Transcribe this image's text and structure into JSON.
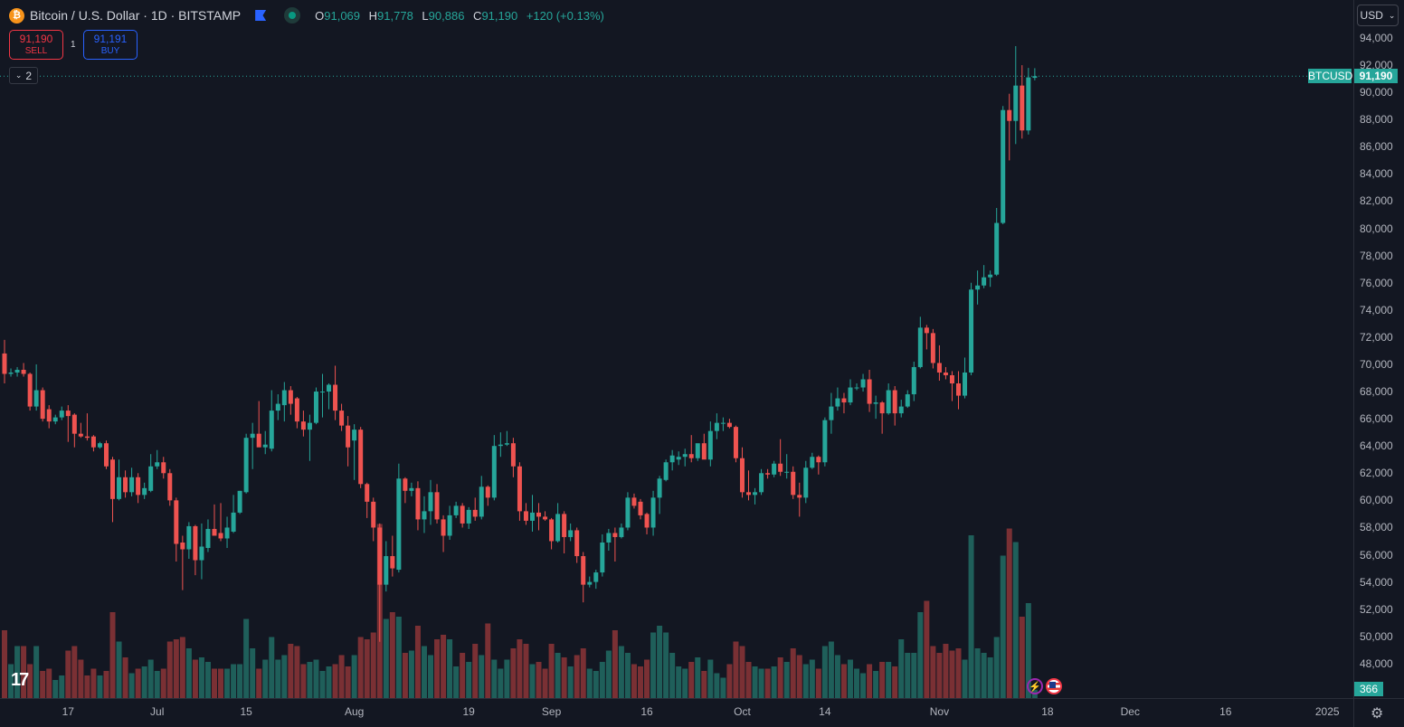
{
  "header": {
    "logo_glyph": "₿",
    "title": "Bitcoin / U.S. Dollar · 1D · BITSTAMP",
    "ohlc": {
      "o_label": "O",
      "o": "91,069",
      "h_label": "H",
      "h": "91,778",
      "l_label": "L",
      "l": "90,886",
      "c_label": "C",
      "c": "91,190",
      "change": "+120 (+0.13%)"
    }
  },
  "trade": {
    "sell_price": "91,190",
    "sell_label": "SELL",
    "qty": "1",
    "buy_price": "91,191",
    "buy_label": "BUY"
  },
  "indicators_toggle": {
    "icon": "chevron-down",
    "count": "2"
  },
  "currency_button": {
    "label": "USD",
    "icon": "chevron-down"
  },
  "price_tag": {
    "symbol": "BTCUSD",
    "price": "91,190"
  },
  "volume_tag": "366",
  "colors": {
    "up": "#26a69a",
    "down": "#ef5350",
    "up_vol": "#1f5f5a",
    "down_vol": "#7a3034",
    "bg": "#131722",
    "axis_text": "#b2b5be"
  },
  "chart_data": {
    "type": "candlestick",
    "title": "Bitcoin / U.S. Dollar · 1D · BITSTAMP",
    "units": "USD thousands (o,h,l,c)",
    "ylim": [
      46,
      94
    ],
    "y_ticks": [
      "94,000",
      "92,000",
      "90,000",
      "88,000",
      "86,000",
      "84,000",
      "82,000",
      "80,000",
      "78,000",
      "76,000",
      "74,000",
      "72,000",
      "70,000",
      "68,000",
      "66,000",
      "64,000",
      "62,000",
      "60,000",
      "58,000",
      "56,000",
      "54,000",
      "52,000",
      "50,000",
      "48,000"
    ],
    "y_tick_values": [
      94,
      92,
      90,
      88,
      86,
      84,
      82,
      80,
      78,
      76,
      74,
      72,
      70,
      68,
      66,
      64,
      62,
      60,
      58,
      56,
      54,
      52,
      50,
      48
    ],
    "x_ticks": [
      {
        "label": "17",
        "day_index": 10
      },
      {
        "label": "Jul",
        "day_index": 24
      },
      {
        "label": "15",
        "day_index": 38
      },
      {
        "label": "Aug",
        "day_index": 55
      },
      {
        "label": "19",
        "day_index": 73
      },
      {
        "label": "Sep",
        "day_index": 86
      },
      {
        "label": "16",
        "day_index": 101
      },
      {
        "label": "Oct",
        "day_index": 116
      },
      {
        "label": "14",
        "day_index": 129
      },
      {
        "label": "Nov",
        "day_index": 147
      },
      {
        "label": "18",
        "day_index": 164
      },
      {
        "label": "Dec",
        "day_index": 177
      },
      {
        "label": "16",
        "day_index": 192
      },
      {
        "label": "2025",
        "day_index": 208
      }
    ],
    "last_price": 91.19,
    "candles": [
      [
        70.8,
        71.8,
        68.6,
        69.3
      ],
      [
        69.3,
        69.7,
        69.1,
        69.4
      ],
      [
        69.4,
        69.8,
        69.1,
        69.6
      ],
      [
        69.6,
        70.1,
        69.1,
        69.3
      ],
      [
        69.3,
        69.4,
        66.6,
        66.9
      ],
      [
        66.9,
        70.0,
        66.6,
        68.1
      ],
      [
        68.1,
        68.3,
        65.8,
        66.0
      ],
      [
        66.7,
        67.0,
        65.3,
        65.8
      ],
      [
        65.8,
        66.3,
        65.6,
        66.1
      ],
      [
        66.1,
        66.9,
        65.9,
        66.6
      ],
      [
        66.6,
        67.0,
        64.3,
        66.2
      ],
      [
        66.3,
        66.4,
        63.9,
        64.9
      ],
      [
        64.9,
        65.7,
        64.6,
        64.7
      ],
      [
        64.7,
        66.4,
        64.4,
        64.6
      ],
      [
        64.7,
        64.8,
        63.6,
        63.9
      ],
      [
        63.9,
        64.3,
        63.8,
        64.2
      ],
      [
        64.2,
        64.4,
        62.3,
        62.5
      ],
      [
        63.0,
        63.2,
        58.4,
        60.1
      ],
      [
        60.1,
        63.0,
        60.0,
        61.7
      ],
      [
        61.7,
        62.2,
        60.2,
        60.6
      ],
      [
        60.6,
        62.4,
        60.3,
        61.7
      ],
      [
        61.7,
        62.0,
        59.8,
        60.4
      ],
      [
        60.4,
        61.3,
        60.1,
        60.9
      ],
      [
        60.7,
        63.4,
        60.6,
        62.5
      ],
      [
        62.5,
        63.7,
        62.3,
        62.8
      ],
      [
        62.8,
        63.2,
        61.6,
        62.0
      ],
      [
        62.0,
        62.3,
        59.6,
        60.0
      ],
      [
        60.0,
        60.2,
        55.5,
        56.8
      ],
      [
        56.9,
        57.4,
        53.4,
        56.4
      ],
      [
        56.4,
        58.4,
        55.7,
        58.1
      ],
      [
        58.1,
        58.2,
        54.5,
        55.6
      ],
      [
        55.6,
        58.3,
        54.2,
        56.6
      ],
      [
        56.5,
        58.6,
        56.2,
        57.9
      ],
      [
        57.9,
        59.7,
        57.6,
        57.4
      ],
      [
        57.6,
        59.8,
        57.0,
        57.2
      ],
      [
        57.2,
        58.8,
        56.5,
        58.0
      ],
      [
        57.7,
        60.4,
        57.6,
        59.1
      ],
      [
        59.1,
        60.7,
        59.0,
        60.7
      ],
      [
        60.6,
        64.9,
        60.5,
        64.6
      ],
      [
        64.6,
        65.7,
        62.3,
        64.9
      ],
      [
        64.9,
        67.3,
        64.0,
        63.9
      ],
      [
        63.9,
        65.1,
        63.4,
        64.1
      ],
      [
        63.8,
        68.1,
        63.6,
        66.6
      ],
      [
        66.6,
        67.8,
        65.9,
        67.1
      ],
      [
        67.0,
        68.7,
        65.8,
        68.1
      ],
      [
        68.1,
        68.4,
        66.3,
        67.1
      ],
      [
        67.5,
        67.6,
        65.3,
        65.8
      ],
      [
        65.8,
        66.6,
        64.7,
        65.2
      ],
      [
        65.2,
        66.3,
        62.9,
        65.7
      ],
      [
        65.7,
        68.3,
        65.6,
        68.0
      ],
      [
        68.0,
        69.3,
        66.1,
        68.0
      ],
      [
        68.0,
        68.6,
        66.7,
        68.5
      ],
      [
        68.5,
        69.9,
        65.9,
        66.6
      ],
      [
        66.6,
        67.1,
        65.1,
        65.5
      ],
      [
        65.5,
        66.2,
        62.5,
        63.9
      ],
      [
        64.4,
        65.6,
        61.5,
        65.2
      ],
      [
        65.2,
        65.4,
        60.9,
        61.2
      ],
      [
        61.2,
        61.3,
        58.7,
        59.9
      ],
      [
        59.9,
        60.2,
        57.0,
        58.0
      ],
      [
        58.0,
        58.3,
        49.6,
        53.8
      ],
      [
        53.8,
        57.0,
        53.3,
        55.9
      ],
      [
        55.9,
        57.4,
        54.4,
        55.0
      ],
      [
        54.9,
        62.7,
        54.7,
        61.6
      ],
      [
        61.6,
        61.7,
        59.8,
        60.7
      ],
      [
        60.7,
        61.3,
        60.3,
        60.9
      ],
      [
        60.9,
        61.4,
        57.8,
        58.6
      ],
      [
        58.6,
        60.3,
        57.6,
        59.2
      ],
      [
        59.2,
        61.5,
        58.2,
        60.6
      ],
      [
        60.6,
        61.2,
        58.3,
        58.6
      ],
      [
        58.6,
        58.9,
        56.2,
        57.4
      ],
      [
        57.4,
        59.6,
        57.1,
        58.9
      ],
      [
        58.9,
        59.9,
        58.7,
        59.6
      ],
      [
        59.6,
        59.8,
        58.0,
        58.3
      ],
      [
        58.3,
        59.5,
        57.9,
        59.3
      ],
      [
        59.3,
        60.2,
        58.5,
        58.8
      ],
      [
        58.8,
        61.8,
        58.6,
        61.0
      ],
      [
        61.0,
        61.1,
        59.6,
        60.2
      ],
      [
        60.2,
        64.8,
        60.0,
        64.0
      ],
      [
        64.0,
        65.0,
        63.2,
        64.1
      ],
      [
        64.1,
        65.1,
        64.0,
        64.2
      ],
      [
        64.2,
        64.6,
        61.7,
        62.5
      ],
      [
        62.5,
        62.8,
        58.5,
        59.2
      ],
      [
        59.2,
        59.8,
        58.2,
        58.5
      ],
      [
        58.5,
        60.4,
        57.7,
        59.1
      ],
      [
        59.1,
        59.8,
        57.8,
        58.8
      ],
      [
        58.8,
        59.2,
        58.5,
        58.6
      ],
      [
        58.6,
        58.7,
        56.4,
        57.0
      ],
      [
        57.0,
        59.8,
        56.9,
        59.0
      ],
      [
        59.0,
        59.2,
        56.1,
        57.3
      ],
      [
        57.3,
        58.3,
        57.0,
        57.8
      ],
      [
        57.8,
        58.0,
        55.4,
        55.9
      ],
      [
        55.9,
        56.2,
        52.5,
        53.8
      ],
      [
        53.8,
        54.4,
        53.6,
        54.0
      ],
      [
        54.0,
        54.9,
        53.5,
        54.7
      ],
      [
        54.7,
        57.5,
        54.4,
        56.9
      ],
      [
        56.9,
        57.9,
        56.3,
        57.6
      ],
      [
        57.6,
        58.0,
        55.5,
        57.3
      ],
      [
        57.3,
        58.3,
        57.2,
        58.0
      ],
      [
        58.0,
        60.6,
        57.8,
        60.2
      ],
      [
        60.2,
        60.5,
        59.4,
        59.6
      ],
      [
        59.9,
        60.1,
        58.6,
        58.9
      ],
      [
        59.0,
        59.1,
        57.5,
        58.0
      ],
      [
        58.0,
        60.7,
        57.4,
        60.2
      ],
      [
        60.2,
        61.8,
        59.0,
        61.6
      ],
      [
        61.5,
        63.0,
        61.4,
        62.8
      ],
      [
        62.8,
        63.7,
        62.2,
        63.3
      ],
      [
        63.0,
        63.6,
        62.6,
        63.2
      ],
      [
        63.2,
        63.8,
        62.5,
        63.4
      ],
      [
        63.4,
        64.8,
        62.8,
        63.1
      ],
      [
        63.1,
        64.0,
        62.9,
        64.2
      ],
      [
        64.2,
        64.9,
        63.1,
        63.0
      ],
      [
        63.0,
        65.8,
        62.5,
        65.1
      ],
      [
        65.1,
        66.4,
        64.5,
        65.7
      ],
      [
        65.7,
        66.1,
        65.1,
        65.7
      ],
      [
        65.7,
        66.0,
        65.3,
        65.4
      ],
      [
        65.4,
        65.5,
        62.8,
        63.1
      ],
      [
        63.1,
        63.9,
        60.2,
        60.6
      ],
      [
        60.6,
        62.2,
        60.0,
        60.4
      ],
      [
        60.4,
        60.9,
        59.7,
        60.6
      ],
      [
        60.6,
        62.3,
        60.4,
        62.0
      ],
      [
        62.0,
        62.3,
        61.6,
        61.9
      ],
      [
        61.9,
        62.9,
        61.7,
        62.7
      ],
      [
        62.7,
        64.5,
        61.8,
        62.1
      ],
      [
        62.1,
        63.4,
        61.6,
        62.1
      ],
      [
        62.1,
        62.5,
        60.1,
        60.4
      ],
      [
        60.4,
        61.3,
        58.8,
        60.2
      ],
      [
        60.2,
        62.9,
        59.8,
        62.4
      ],
      [
        62.4,
        63.5,
        62.3,
        63.2
      ],
      [
        63.2,
        63.3,
        61.9,
        62.8
      ],
      [
        62.8,
        66.1,
        62.5,
        65.9
      ],
      [
        65.9,
        67.9,
        64.9,
        66.9
      ],
      [
        66.9,
        68.3,
        66.6,
        67.5
      ],
      [
        67.5,
        67.9,
        66.4,
        67.2
      ],
      [
        67.2,
        68.9,
        67.0,
        68.3
      ],
      [
        68.3,
        68.6,
        68.1,
        68.3
      ],
      [
        68.3,
        69.3,
        68.0,
        68.9
      ],
      [
        68.9,
        69.6,
        66.5,
        67.1
      ],
      [
        67.1,
        67.7,
        66.0,
        67.2
      ],
      [
        67.2,
        67.3,
        64.9,
        66.4
      ],
      [
        66.4,
        68.6,
        66.3,
        68.1
      ],
      [
        68.1,
        68.4,
        65.5,
        66.4
      ],
      [
        66.4,
        67.4,
        66.1,
        66.9
      ],
      [
        66.9,
        68.1,
        66.8,
        67.8
      ],
      [
        67.8,
        70.2,
        67.3,
        69.8
      ],
      [
        69.8,
        73.5,
        69.7,
        72.7
      ],
      [
        72.7,
        72.9,
        71.1,
        72.3
      ],
      [
        72.3,
        72.6,
        69.7,
        70.1
      ],
      [
        70.1,
        71.4,
        68.8,
        69.4
      ],
      [
        69.4,
        69.8,
        68.9,
        69.2
      ],
      [
        69.2,
        69.5,
        67.3,
        68.6
      ],
      [
        68.6,
        69.5,
        66.7,
        67.7
      ],
      [
        67.7,
        70.5,
        67.5,
        69.4
      ],
      [
        69.4,
        76.0,
        69.2,
        75.5
      ],
      [
        75.5,
        76.9,
        74.4,
        75.8
      ],
      [
        75.8,
        77.3,
        75.6,
        76.4
      ],
      [
        76.4,
        76.9,
        75.7,
        76.6
      ],
      [
        76.6,
        81.5,
        76.5,
        80.4
      ],
      [
        80.4,
        89.0,
        80.3,
        88.7
      ],
      [
        88.7,
        89.9,
        85.0,
        87.9
      ],
      [
        87.9,
        93.4,
        86.2,
        90.5
      ],
      [
        90.5,
        92.0,
        86.6,
        87.2
      ],
      [
        87.2,
        91.8,
        86.9,
        91.1
      ],
      [
        91.069,
        91.778,
        90.886,
        91.19
      ]
    ],
    "volumes": [
      3000,
      1500,
      2300,
      2300,
      1500,
      2300,
      1200,
      1300,
      800,
      1000,
      2100,
      2300,
      1700,
      1000,
      1300,
      1000,
      1200,
      3800,
      2500,
      1800,
      1100,
      1300,
      1400,
      1700,
      1200,
      1300,
      2500,
      2600,
      2700,
      2200,
      1700,
      1800,
      1600,
      1300,
      1300,
      1300,
      1500,
      1500,
      3500,
      2200,
      1300,
      1700,
      2700,
      1700,
      1900,
      2400,
      2300,
      1500,
      1600,
      1700,
      1200,
      1400,
      1500,
      1900,
      1400,
      1900,
      2700,
      2600,
      2900,
      7700,
      3500,
      3800,
      3600,
      2000,
      2100,
      3200,
      2300,
      1900,
      2600,
      2800,
      2600,
      1400,
      2000,
      1600,
      2400,
      1900,
      3300,
      1700,
      1300,
      1700,
      2200,
      2600,
      2400,
      1500,
      1600,
      1300,
      2400,
      2000,
      1800,
      1400,
      1900,
      2200,
      1300,
      1200,
      1600,
      2100,
      3000,
      2300,
      2000,
      1500,
      1400,
      1700,
      2900,
      3200,
      2900,
      2000,
      1400,
      1300,
      1600,
      1800,
      1200,
      1700,
      1100,
      900,
      1500,
      2500,
      2300,
      1600,
      1400,
      1300,
      1300,
      1400,
      1800,
      1600,
      2200,
      1900,
      1500,
      1700,
      1300,
      2300,
      2500,
      1900,
      1500,
      1700,
      1300,
      1100,
      1500,
      1200,
      1600,
      1600,
      1400,
      2600,
      2000,
      2000,
      3800,
      4300,
      2300,
      2000,
      2400,
      2100,
      2200,
      1700,
      7200,
      2200,
      2000,
      1800,
      2700,
      6300,
      7500,
      6900,
      3600,
      4200,
      366
    ]
  }
}
